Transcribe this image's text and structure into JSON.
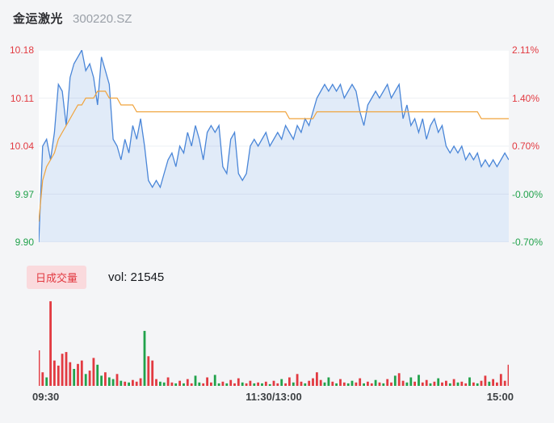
{
  "header": {
    "title": "金运激光",
    "code": "300220.SZ"
  },
  "legend": {
    "badge_label": "日成交量",
    "volume_label": "vol: 21545"
  },
  "colors": {
    "up": "#e23a41",
    "down": "#21a24b",
    "price_line": "#4a86d8",
    "avg_line": "#f0a33c",
    "area_fill": "rgba(91,143,217,0.18)",
    "grid": "#eef0f4",
    "badge_bg": "#fadadd",
    "plot_bg": "#ffffff",
    "page_bg": "#f4f5f7"
  },
  "chart_data": {
    "type": "line",
    "title": "金运激光 300220.SZ 分时走势",
    "prev_close": 9.97,
    "ylim": [
      9.9,
      10.18
    ],
    "grid": true,
    "legend_position": "below-price-pane",
    "y_axis_left": {
      "labels": [
        "10.18",
        "10.11",
        "10.04",
        "9.97",
        "9.90"
      ]
    },
    "y_axis_right": {
      "labels": [
        "2.11%",
        "1.40%",
        "0.70%",
        "-0.00%",
        "-0.70%"
      ]
    },
    "x_axis_labels": [
      "09:30",
      "11:30/13:00",
      "15:00"
    ],
    "x_range_minutes": [
      0,
      240
    ],
    "sampling_interval_min": 2,
    "series": [
      {
        "name": "price",
        "values": [
          9.9,
          10.04,
          10.05,
          10.02,
          10.06,
          10.13,
          10.12,
          10.07,
          10.14,
          10.16,
          10.17,
          10.18,
          10.15,
          10.16,
          10.14,
          10.1,
          10.17,
          10.15,
          10.13,
          10.05,
          10.04,
          10.02,
          10.05,
          10.03,
          10.07,
          10.05,
          10.08,
          10.04,
          9.99,
          9.98,
          9.99,
          9.98,
          10.0,
          10.02,
          10.03,
          10.01,
          10.04,
          10.03,
          10.06,
          10.04,
          10.07,
          10.05,
          10.02,
          10.06,
          10.07,
          10.06,
          10.07,
          10.01,
          10.0,
          10.05,
          10.06,
          10.0,
          9.99,
          10.0,
          10.04,
          10.05,
          10.04,
          10.05,
          10.06,
          10.04,
          10.05,
          10.06,
          10.05,
          10.07,
          10.06,
          10.05,
          10.07,
          10.06,
          10.08,
          10.07,
          10.09,
          10.11,
          10.12,
          10.13,
          10.12,
          10.13,
          10.12,
          10.13,
          10.11,
          10.12,
          10.13,
          10.12,
          10.09,
          10.07,
          10.1,
          10.11,
          10.12,
          10.11,
          10.12,
          10.13,
          10.11,
          10.12,
          10.13,
          10.08,
          10.1,
          10.07,
          10.08,
          10.06,
          10.08,
          10.05,
          10.07,
          10.08,
          10.06,
          10.07,
          10.04,
          10.03,
          10.04,
          10.03,
          10.04,
          10.02,
          10.03,
          10.02,
          10.03,
          10.01,
          10.02,
          10.01,
          10.02,
          10.01,
          10.02,
          10.03,
          10.02
        ]
      },
      {
        "name": "avg_price",
        "values": [
          9.93,
          9.99,
          10.01,
          10.02,
          10.03,
          10.05,
          10.06,
          10.07,
          10.08,
          10.09,
          10.1,
          10.1,
          10.11,
          10.11,
          10.11,
          10.12,
          10.12,
          10.12,
          10.11,
          10.11,
          10.11,
          10.1,
          10.1,
          10.1,
          10.1,
          10.09,
          10.09,
          10.09,
          10.09,
          10.09,
          10.09,
          10.09,
          10.09,
          10.09,
          10.09,
          10.09,
          10.09,
          10.09,
          10.09,
          10.09,
          10.09,
          10.09,
          10.09,
          10.09,
          10.09,
          10.09,
          10.09,
          10.09,
          10.09,
          10.09,
          10.09,
          10.09,
          10.09,
          10.09,
          10.09,
          10.09,
          10.09,
          10.09,
          10.09,
          10.09,
          10.09,
          10.09,
          10.09,
          10.09,
          10.08,
          10.08,
          10.08,
          10.08,
          10.08,
          10.08,
          10.08,
          10.09,
          10.09,
          10.09,
          10.09,
          10.09,
          10.09,
          10.09,
          10.09,
          10.09,
          10.09,
          10.09,
          10.09,
          10.09,
          10.09,
          10.09,
          10.09,
          10.09,
          10.09,
          10.09,
          10.09,
          10.09,
          10.09,
          10.09,
          10.09,
          10.09,
          10.09,
          10.09,
          10.09,
          10.09,
          10.09,
          10.09,
          10.09,
          10.09,
          10.09,
          10.09,
          10.09,
          10.09,
          10.09,
          10.09,
          10.09,
          10.09,
          10.09,
          10.08,
          10.08,
          10.08,
          10.08,
          10.08,
          10.08,
          10.08,
          10.08
        ]
      }
    ],
    "volume": {
      "total": 21545,
      "ymax": 105,
      "values": [
        42,
        16,
        10,
        100,
        30,
        24,
        38,
        40,
        28,
        20,
        26,
        30,
        14,
        18,
        33,
        25,
        12,
        16,
        10,
        8,
        14,
        6,
        5,
        4,
        7,
        5,
        9,
        65,
        35,
        30,
        8,
        5,
        4,
        10,
        4,
        3,
        6,
        3,
        8,
        3,
        12,
        4,
        3,
        10,
        4,
        13,
        3,
        5,
        3,
        7,
        3,
        9,
        4,
        3,
        6,
        3,
        4,
        3,
        5,
        2,
        6,
        3,
        8,
        3,
        10,
        4,
        14,
        5,
        3,
        6,
        9,
        16,
        7,
        4,
        10,
        5,
        3,
        8,
        4,
        3,
        6,
        4,
        9,
        3,
        5,
        3,
        7,
        4,
        3,
        8,
        4,
        12,
        15,
        6,
        4,
        10,
        5,
        13,
        4,
        7,
        3,
        5,
        9,
        4,
        6,
        3,
        8,
        4,
        5,
        3,
        10,
        4,
        3,
        6,
        12,
        5,
        8,
        4,
        14,
        6,
        25
      ],
      "colors": [
        "r",
        "r",
        "g",
        "r",
        "r",
        "r",
        "r",
        "r",
        "r",
        "g",
        "r",
        "r",
        "g",
        "r",
        "r",
        "g",
        "g",
        "r",
        "g",
        "g",
        "r",
        "g",
        "r",
        "g",
        "r",
        "r",
        "r",
        "g",
        "r",
        "r",
        "r",
        "g",
        "g",
        "r",
        "r",
        "g",
        "r",
        "g",
        "r",
        "r",
        "g",
        "g",
        "r",
        "r",
        "r",
        "g",
        "g",
        "r",
        "g",
        "r",
        "r",
        "r",
        "g",
        "r",
        "r",
        "g",
        "r",
        "g",
        "r",
        "g",
        "r",
        "r",
        "g",
        "r",
        "r",
        "g",
        "r",
        "r",
        "g",
        "r",
        "r",
        "r",
        "r",
        "g",
        "g",
        "r",
        "g",
        "r",
        "r",
        "g",
        "g",
        "r",
        "r",
        "g",
        "r",
        "r",
        "g",
        "r",
        "g",
        "r",
        "r",
        "g",
        "r",
        "r",
        "g",
        "g",
        "r",
        "g",
        "r",
        "r",
        "g",
        "r",
        "g",
        "r",
        "r",
        "g",
        "r",
        "g",
        "r",
        "r",
        "g",
        "r",
        "g",
        "r",
        "r",
        "g",
        "r",
        "r",
        "r",
        "r",
        "r"
      ]
    }
  }
}
